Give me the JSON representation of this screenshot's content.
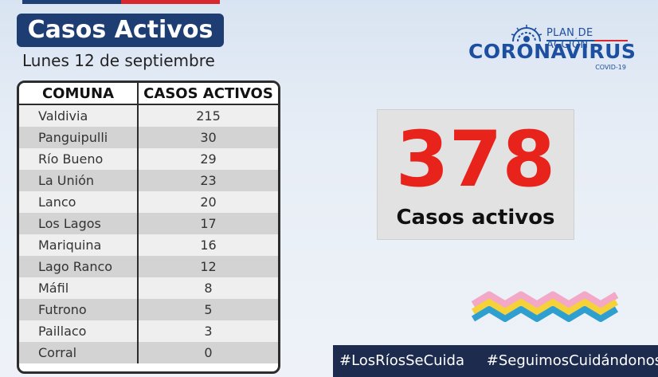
{
  "header": {
    "title": "Casos Activos",
    "date": "Lunes 12 de septiembre"
  },
  "logo": {
    "plan": "PLAN DE ACCIÓN",
    "name": "CORONAVIRUS",
    "sub": "COVID-19"
  },
  "table": {
    "headers": [
      "COMUNA",
      "CASOS ACTIVOS"
    ],
    "rows": [
      {
        "comuna": "Valdivia",
        "casos": "215"
      },
      {
        "comuna": "Panguipulli",
        "casos": "30"
      },
      {
        "comuna": "Río Bueno",
        "casos": "29"
      },
      {
        "comuna": "La Unión",
        "casos": "23"
      },
      {
        "comuna": "Lanco",
        "casos": "20"
      },
      {
        "comuna": "Los Lagos",
        "casos": "17"
      },
      {
        "comuna": "Mariquina",
        "casos": "16"
      },
      {
        "comuna": "Lago Ranco",
        "casos": "12"
      },
      {
        "comuna": "Máfil",
        "casos": "8"
      },
      {
        "comuna": "Futrono",
        "casos": "5"
      },
      {
        "comuna": "Paillaco",
        "casos": "3"
      },
      {
        "comuna": "Corral",
        "casos": "0"
      }
    ]
  },
  "summary": {
    "total": "378",
    "label": "Casos activos"
  },
  "hashtags": [
    "#LosRíosSeCuida",
    "#SeguimosCuidándonos"
  ],
  "colors": {
    "navy": "#1d3d73",
    "red_accent": "#e8231c",
    "logo_blue": "#1d4fa0",
    "hashbar": "#1c2b4e",
    "wave_pink": "#f3a8c8",
    "wave_yellow": "#f5d13a",
    "wave_blue": "#2f9fd0"
  }
}
